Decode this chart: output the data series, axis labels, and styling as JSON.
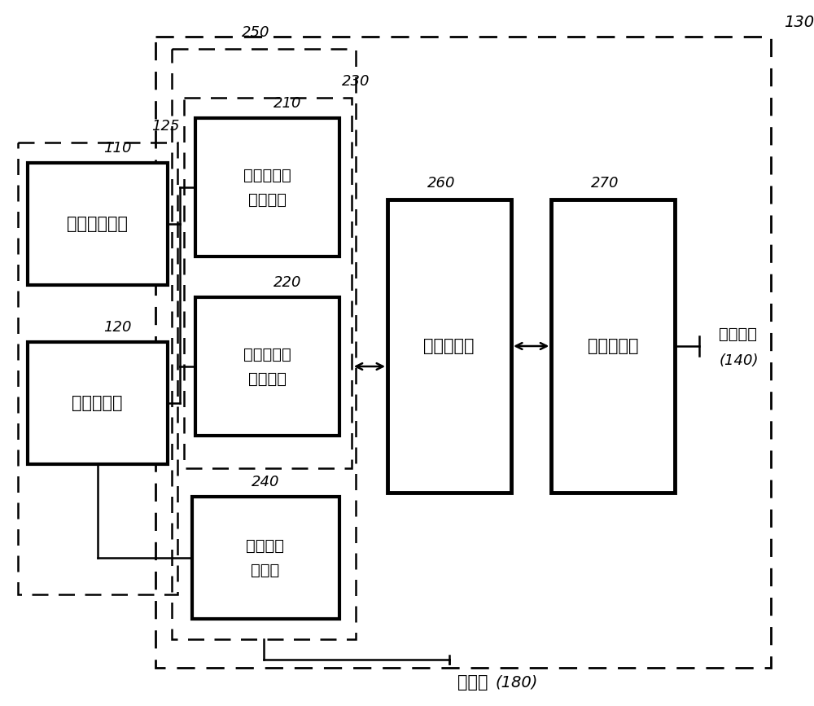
{
  "label_130": "130",
  "label_125": "125",
  "label_110": "110",
  "label_120": "120",
  "label_250": "250",
  "label_230": "230",
  "label_210": "210",
  "label_220": "220",
  "label_240": "240",
  "label_260": "260",
  "label_270": "270",
  "label_140": "(140)",
  "text_110_1": "治疗用换能器",
  "text_120_1": "成像换能器",
  "text_210_1": "第二发送波",
  "text_210_2": "束形成器",
  "text_220_1": "第一发送波",
  "text_220_2": "束形成器",
  "text_240_1": "接收波束",
  "text_240_2": "形成器",
  "text_260": "信号处理部",
  "text_270": "扫描变换器",
  "text_sync": "同步化部",
  "text_display": "显示部",
  "text_display_num": "(180)"
}
